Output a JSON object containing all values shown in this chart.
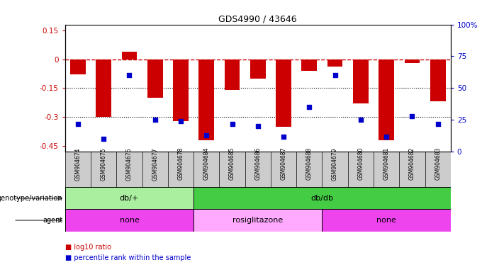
{
  "title": "GDS4990 / 43646",
  "samples": [
    "GSM904674",
    "GSM904675",
    "GSM904676",
    "GSM904677",
    "GSM904678",
    "GSM904684",
    "GSM904685",
    "GSM904686",
    "GSM904687",
    "GSM904688",
    "GSM904679",
    "GSM904680",
    "GSM904681",
    "GSM904682",
    "GSM904683"
  ],
  "log10_ratio": [
    -0.08,
    -0.3,
    0.04,
    -0.2,
    -0.32,
    -0.42,
    -0.16,
    -0.1,
    -0.35,
    -0.06,
    -0.04,
    -0.23,
    -0.42,
    -0.02,
    -0.22
  ],
  "percentile_rank": [
    22,
    10,
    60,
    25,
    24,
    13,
    22,
    20,
    12,
    35,
    60,
    25,
    12,
    28,
    22
  ],
  "genotype": [
    {
      "label": "db/+",
      "start": 0,
      "end": 5,
      "color": "#AAEEA0"
    },
    {
      "label": "db/db",
      "start": 5,
      "end": 15,
      "color": "#44CC44"
    }
  ],
  "agent": [
    {
      "label": "none",
      "start": 0,
      "end": 5,
      "color": "#EE44EE"
    },
    {
      "label": "rosiglitazone",
      "start": 5,
      "end": 10,
      "color": "#FFAAFF"
    },
    {
      "label": "none",
      "start": 10,
      "end": 15,
      "color": "#EE44EE"
    }
  ],
  "bar_color": "#CC0000",
  "scatter_color": "#0000CC",
  "ref_line_color": "#CC0000",
  "dotted_line_color": "#000000",
  "ylim_left": [
    -0.48,
    0.18
  ],
  "ylim_right": [
    0,
    100
  ],
  "yticks_left": [
    0.15,
    0.0,
    -0.15,
    -0.3,
    -0.45
  ],
  "yticks_left_labels": [
    "0.15",
    "0",
    "-0.15",
    "-0.3",
    "-0.45"
  ],
  "yticks_right": [
    100,
    75,
    50,
    25,
    0
  ],
  "yticks_right_labels": [
    "100%",
    "75",
    "50",
    "25",
    "0"
  ],
  "legend_items": [
    {
      "label": "log10 ratio",
      "color": "#CC0000"
    },
    {
      "label": "percentile rank within the sample",
      "color": "#0000CC"
    }
  ],
  "xlabel_bg_color": "#CCCCCC",
  "bar_width": 0.6
}
